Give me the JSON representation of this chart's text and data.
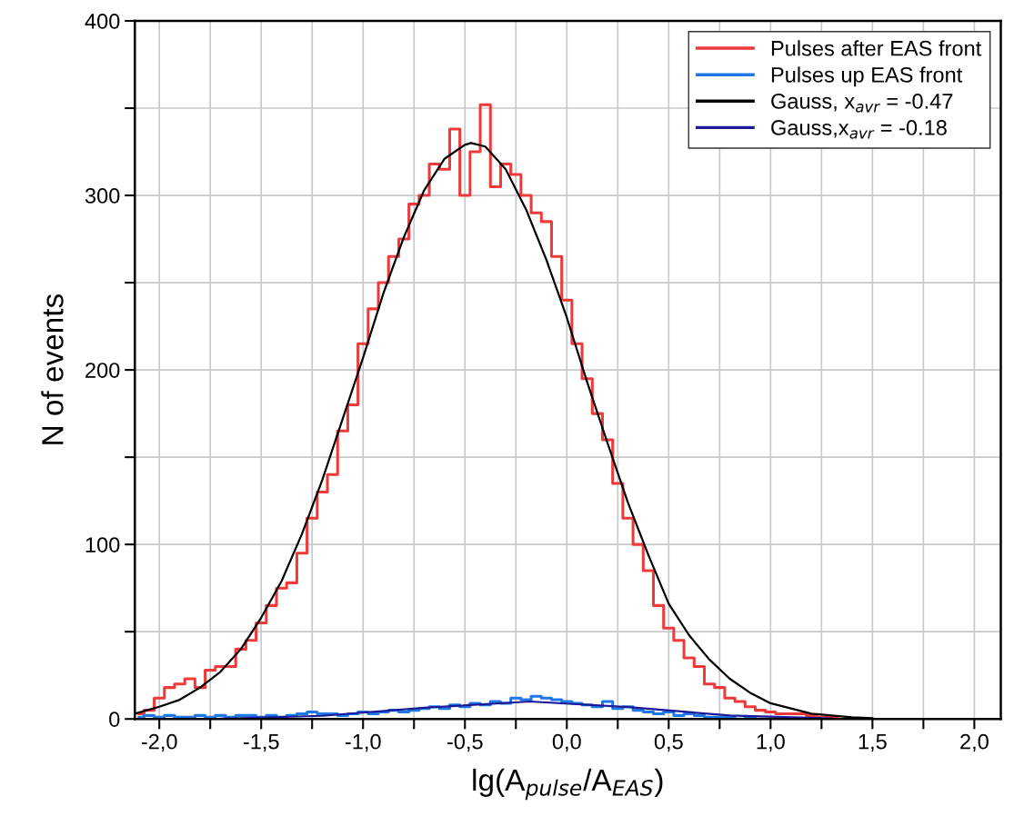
{
  "chart_data": {
    "type": "step",
    "xlabel": "lg(A$_{pulse}$/A$_{EAS}$)",
    "ylabel": "N of events",
    "xlim": [
      -2.12,
      2.13
    ],
    "ylim": [
      0,
      400
    ],
    "xticks": [
      {
        "value": -2.0,
        "label": "-2,0"
      },
      {
        "value": -1.75,
        "label": null
      },
      {
        "value": -1.5,
        "label": "-1,5"
      },
      {
        "value": -1.25,
        "label": null
      },
      {
        "value": -1.0,
        "label": "-1,0"
      },
      {
        "value": -0.75,
        "label": null
      },
      {
        "value": -0.5,
        "label": "-0,5"
      },
      {
        "value": -0.25,
        "label": null
      },
      {
        "value": 0.0,
        "label": "0,0"
      },
      {
        "value": 0.25,
        "label": null
      },
      {
        "value": 0.5,
        "label": "0,5"
      },
      {
        "value": 0.75,
        "label": null
      },
      {
        "value": 1.0,
        "label": "1,0"
      },
      {
        "value": 1.25,
        "label": null
      },
      {
        "value": 1.5,
        "label": "1,5"
      },
      {
        "value": 1.75,
        "label": null
      },
      {
        "value": 2.0,
        "label": "2,0"
      }
    ],
    "yticks": [
      0,
      {
        "value": 50,
        "label": null
      },
      100,
      {
        "value": 150,
        "label": null
      },
      200,
      {
        "value": 250,
        "label": null
      },
      300,
      {
        "value": 350,
        "label": null
      },
      400
    ],
    "grid": true,
    "legend": "top right",
    "series": [
      {
        "name": "Pulses after EAS front",
        "color": "#f03a3a",
        "x": [
          -2.1,
          -2.05,
          -2.0,
          -1.95,
          -1.9,
          -1.85,
          -1.8,
          -1.75,
          -1.7,
          -1.65,
          -1.6,
          -1.55,
          -1.5,
          -1.45,
          -1.4,
          -1.35,
          -1.3,
          -1.25,
          -1.2,
          -1.15,
          -1.1,
          -1.05,
          -1.0,
          -0.95,
          -0.9,
          -0.85,
          -0.8,
          -0.75,
          -0.7,
          -0.65,
          -0.6,
          -0.55,
          -0.5,
          -0.45,
          -0.4,
          -0.35,
          -0.3,
          -0.25,
          -0.2,
          -0.15,
          -0.1,
          -0.05,
          0.0,
          0.05,
          0.1,
          0.15,
          0.2,
          0.25,
          0.3,
          0.35,
          0.4,
          0.45,
          0.5,
          0.55,
          0.6,
          0.65,
          0.7,
          0.75,
          0.8,
          0.85,
          0.9,
          0.95,
          1.0,
          1.05,
          1.1,
          1.15,
          1.2,
          1.25,
          1.3,
          1.35,
          1.4
        ],
        "values": [
          3,
          5,
          12,
          18,
          20,
          23,
          18,
          28,
          30,
          30,
          40,
          45,
          55,
          65,
          75,
          78,
          95,
          115,
          130,
          140,
          165,
          180,
          215,
          235,
          250,
          265,
          275,
          295,
          300,
          318,
          315,
          338,
          300,
          325,
          352,
          305,
          318,
          312,
          300,
          290,
          285,
          265,
          240,
          215,
          195,
          175,
          160,
          135,
          115,
          100,
          85,
          65,
          52,
          45,
          35,
          30,
          20,
          18,
          12,
          10,
          7,
          5,
          4,
          3,
          3,
          3,
          2,
          1,
          1,
          0,
          0
        ]
      },
      {
        "name": "Pulses up EAS front",
        "color": "#1f78e6",
        "type": "step",
        "x": [
          -2.1,
          -2.05,
          -2.0,
          -1.95,
          -1.9,
          -1.85,
          -1.8,
          -1.75,
          -1.7,
          -1.65,
          -1.6,
          -1.55,
          -1.5,
          -1.45,
          -1.4,
          -1.35,
          -1.3,
          -1.25,
          -1.2,
          -1.15,
          -1.1,
          -1.05,
          -1.0,
          -0.95,
          -0.9,
          -0.85,
          -0.8,
          -0.75,
          -0.7,
          -0.65,
          -0.6,
          -0.55,
          -0.5,
          -0.45,
          -0.4,
          -0.35,
          -0.3,
          -0.25,
          -0.2,
          -0.15,
          -0.1,
          -0.05,
          0.0,
          0.05,
          0.1,
          0.15,
          0.2,
          0.25,
          0.3,
          0.35,
          0.4,
          0.45,
          0.5,
          0.55,
          0.6,
          0.65,
          0.7,
          0.75,
          0.8,
          0.85,
          0.9,
          0.95,
          1.0
        ],
        "values": [
          1,
          2,
          1,
          2,
          1,
          1,
          2,
          1,
          2,
          1,
          2,
          2,
          1,
          2,
          1,
          2,
          3,
          4,
          3,
          3,
          2,
          3,
          4,
          3,
          4,
          5,
          4,
          5,
          6,
          7,
          6,
          8,
          7,
          9,
          8,
          10,
          9,
          12,
          11,
          13,
          12,
          11,
          10,
          9,
          8,
          7,
          10,
          6,
          7,
          5,
          4,
          3,
          4,
          2,
          3,
          2,
          1,
          1,
          1,
          0,
          1,
          0,
          0
        ]
      },
      {
        "name": "Gauss, x$_{avr}$ = -0.47",
        "color": "#000000",
        "type": "line",
        "x": [
          -2.12,
          -2.0,
          -1.9,
          -1.8,
          -1.7,
          -1.6,
          -1.5,
          -1.4,
          -1.3,
          -1.2,
          -1.1,
          -1.0,
          -0.9,
          -0.8,
          -0.7,
          -0.6,
          -0.5,
          -0.47,
          -0.4,
          -0.3,
          -0.2,
          -0.1,
          0.0,
          0.1,
          0.2,
          0.3,
          0.4,
          0.5,
          0.6,
          0.7,
          0.8,
          0.9,
          1.0,
          1.1,
          1.2,
          1.3,
          1.4,
          1.5
        ],
        "values": [
          3,
          7,
          11,
          18,
          27,
          40,
          58,
          79,
          106,
          137,
          172,
          207,
          244,
          276,
          303,
          321,
          329,
          330,
          328,
          315,
          292,
          263,
          230,
          193,
          158,
          124,
          94,
          66,
          48,
          34,
          23,
          15,
          9,
          6,
          3,
          2,
          1,
          0.5
        ]
      },
      {
        "name": "Gauss,x$_{avr}$ = -0.18",
        "color": "#1a1a9a",
        "type": "line",
        "x": [
          -1.7,
          -1.2,
          -0.7,
          -0.18,
          0.3,
          0.8,
          1.3
        ],
        "values": [
          0.2,
          1.8,
          6.4,
          10,
          6.8,
          2,
          0.3
        ]
      }
    ]
  }
}
